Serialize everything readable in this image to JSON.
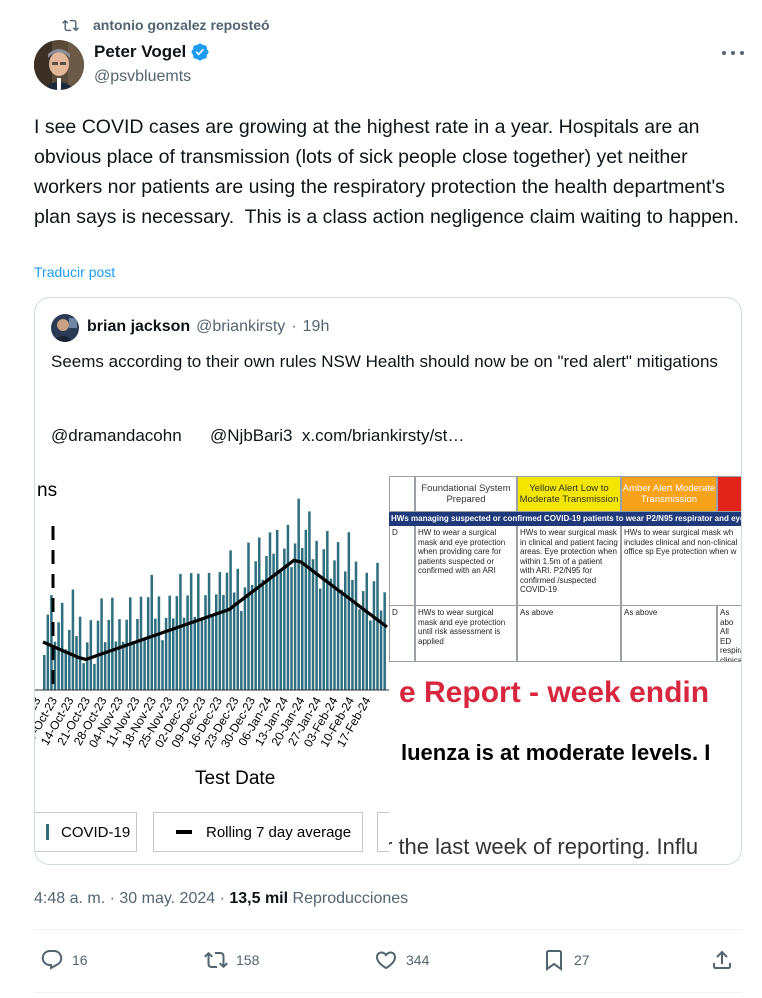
{
  "repost": {
    "label": "antonio gonzalez reposteó"
  },
  "author": {
    "name": "Peter Vogel",
    "handle": "@psvbluemts"
  },
  "post": {
    "text": "I see COVID cases are growing at the highest rate in a year. Hospitals are an obvious place of transmission (lots of sick people close together) yet neither workers nor patients are using the respiratory protection the health department's plan says is necessary.  This is a class action negligence claim waiting to happen.",
    "translate_label": "Traducir post"
  },
  "quote": {
    "name": "brian jackson",
    "handle": "@briankirsty",
    "separator": "·",
    "time": "19h",
    "text": "Seems according to their own rules NSW Health should now be on  \"red alert\" mitigations",
    "mention1": "@dramandacohn",
    "mention2": "@NjbBari3",
    "link": "x.com/briankirsty/st…"
  },
  "chart_image": {
    "title_fragment": "ns",
    "xlabel": "Test Date",
    "date_labels": [
      "30-Sep-23",
      "07-Oct-23",
      "14-Oct-23",
      "21-Oct-23",
      "28-Oct-23",
      "04-Nov-23",
      "11-Nov-23",
      "18-Nov-23",
      "25-Nov-23",
      "02-Dec-23",
      "09-Dec-23",
      "16-Dec-23",
      "23-Dec-23",
      "30-Dec-23",
      "06-Jan-24",
      "13-Jan-24",
      "20-Jan-24",
      "27-Jan-24",
      "03-Feb-24",
      "10-Feb-24",
      "17-Feb-24"
    ],
    "legend_covid": "COVID-19",
    "legend_avg": "Rolling 7 day average",
    "bar_color": "#2f6f80"
  },
  "doc_image": {
    "col_foundational": "Foundational System Prepared",
    "col_yellow": "Yellow Alert Low to Moderate Transmission",
    "col_amber": "Amber Alert Moderate Transmission",
    "banner": "HWs managing suspected or confirmed COVID-19 patients to wear P2/N95 respirator and eye",
    "row1_left": "D",
    "row1_found": "HW to wear a surgical mask and eye protection when providing care for patients suspected or confirmed with an ARI",
    "row1_yellow": "HWs to wear surgical mask in clinical and patient facing areas. Eye protection when within 1.5m of a patient with ARI. P2/N95 for confirmed /suspected COVID-19",
    "row1_amber": "HWs to wear surgical mask wh includes clinical and non-clinical office sp Eye protection when w",
    "row2_left": "D",
    "row2_found": "HWs to wear surgical mask and eye protection until risk assessment is applied",
    "row2_yellow": "As above",
    "row2_amber": "As above",
    "row2_red": "As abo All ED respira clinica care",
    "report_title": "e Report - week endin",
    "flu_line": "luenza is at moderate levels. I",
    "last_week_line": "r the last week of reporting. Influ",
    "yellow_color": "#f3e600",
    "amber_color": "#f7a21b",
    "red_color": "#e2231a"
  },
  "meta": {
    "time": "4:48 a. m. · 30 may. 2024 · ",
    "views_count": "13,5 mil",
    "views_label": " Reproducciones"
  },
  "actions": {
    "replies": "16",
    "reposts": "158",
    "likes": "344",
    "bookmarks": "27"
  }
}
